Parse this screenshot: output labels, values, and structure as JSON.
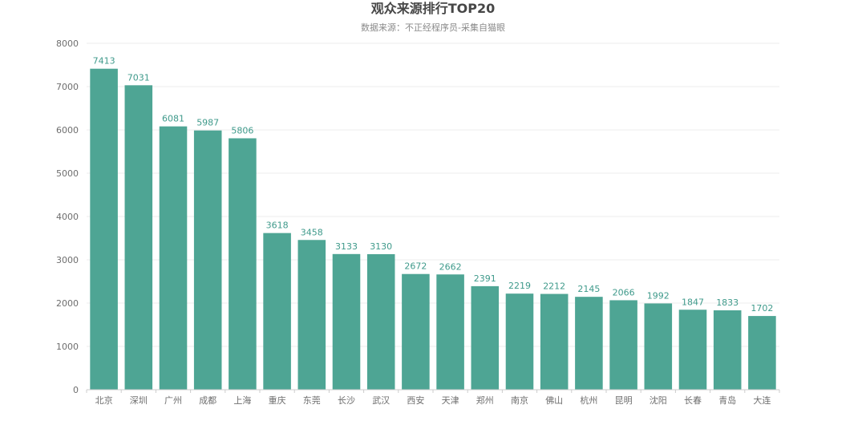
{
  "chart_data": {
    "type": "bar",
    "title": "观众来源排行TOP20",
    "subtitle": "数据来源：不正经程序员-采集自猫眼",
    "categories": [
      "北京",
      "深圳",
      "广州",
      "成都",
      "上海",
      "重庆",
      "东莞",
      "长沙",
      "武汉",
      "西安",
      "天津",
      "郑州",
      "南京",
      "佛山",
      "杭州",
      "昆明",
      "沈阳",
      "长春",
      "青岛",
      "大连"
    ],
    "values": [
      7413,
      7031,
      6081,
      5987,
      5806,
      3618,
      3458,
      3133,
      3130,
      2672,
      2662,
      2391,
      2219,
      2212,
      2145,
      2066,
      1992,
      1847,
      1833,
      1702
    ],
    "ylim": [
      0,
      8000
    ],
    "yticks": [
      0,
      1000,
      2000,
      3000,
      4000,
      5000,
      6000,
      7000,
      8000
    ],
    "grid": true,
    "legend": "none",
    "data_labels": true,
    "colors": {
      "bar": "#4ea594",
      "label": "#3f9a8b",
      "grid": "#ececec",
      "axis": "#cccccc",
      "tick_text": "#6e6e6e",
      "title": "#464646",
      "subtitle": "#8a8a8a"
    }
  }
}
